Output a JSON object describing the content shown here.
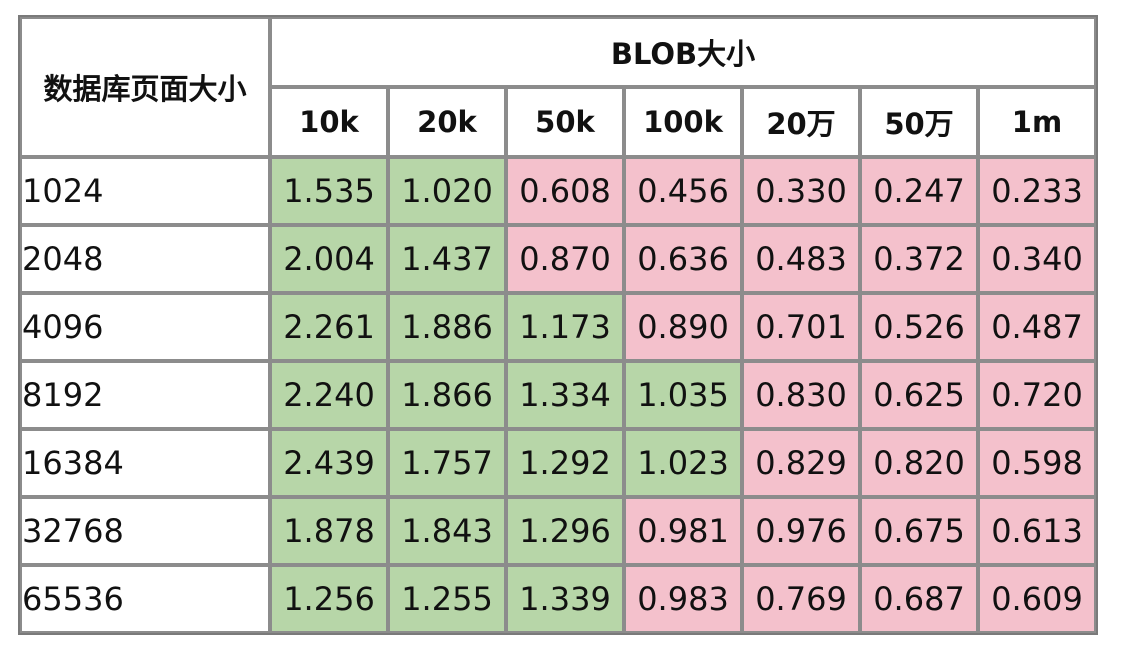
{
  "chart_data": {
    "type": "table",
    "row_header_label": "数据库页面大小",
    "column_group_label": "BLOB大小",
    "columns": [
      "10k",
      "20k",
      "50k",
      "100k",
      "20万",
      "50万",
      "1m"
    ],
    "rows": [
      {
        "label": "1024",
        "values": [
          "1.535",
          "1.020",
          "0.608",
          "0.456",
          "0.330",
          "0.247",
          "0.233"
        ]
      },
      {
        "label": "2048",
        "values": [
          "2.004",
          "1.437",
          "0.870",
          "0.636",
          "0.483",
          "0.372",
          "0.340"
        ]
      },
      {
        "label": "4096",
        "values": [
          "2.261",
          "1.886",
          "1.173",
          "0.890",
          "0.701",
          "0.526",
          "0.487"
        ]
      },
      {
        "label": "8192",
        "values": [
          "2.240",
          "1.866",
          "1.334",
          "1.035",
          "0.830",
          "0.625",
          "0.720"
        ]
      },
      {
        "label": "16384",
        "values": [
          "2.439",
          "1.757",
          "1.292",
          "1.023",
          "0.829",
          "0.820",
          "0.598"
        ]
      },
      {
        "label": "32768",
        "values": [
          "1.878",
          "1.843",
          "1.296",
          "0.981",
          "0.976",
          "0.675",
          "0.613"
        ]
      },
      {
        "label": "65536",
        "values": [
          "1.256",
          "1.255",
          "1.339",
          "0.983",
          "0.769",
          "0.687",
          "0.609"
        ]
      }
    ],
    "colors": {
      "above_one": "#b7d6a8",
      "below_one": "#f4c1cc"
    }
  }
}
